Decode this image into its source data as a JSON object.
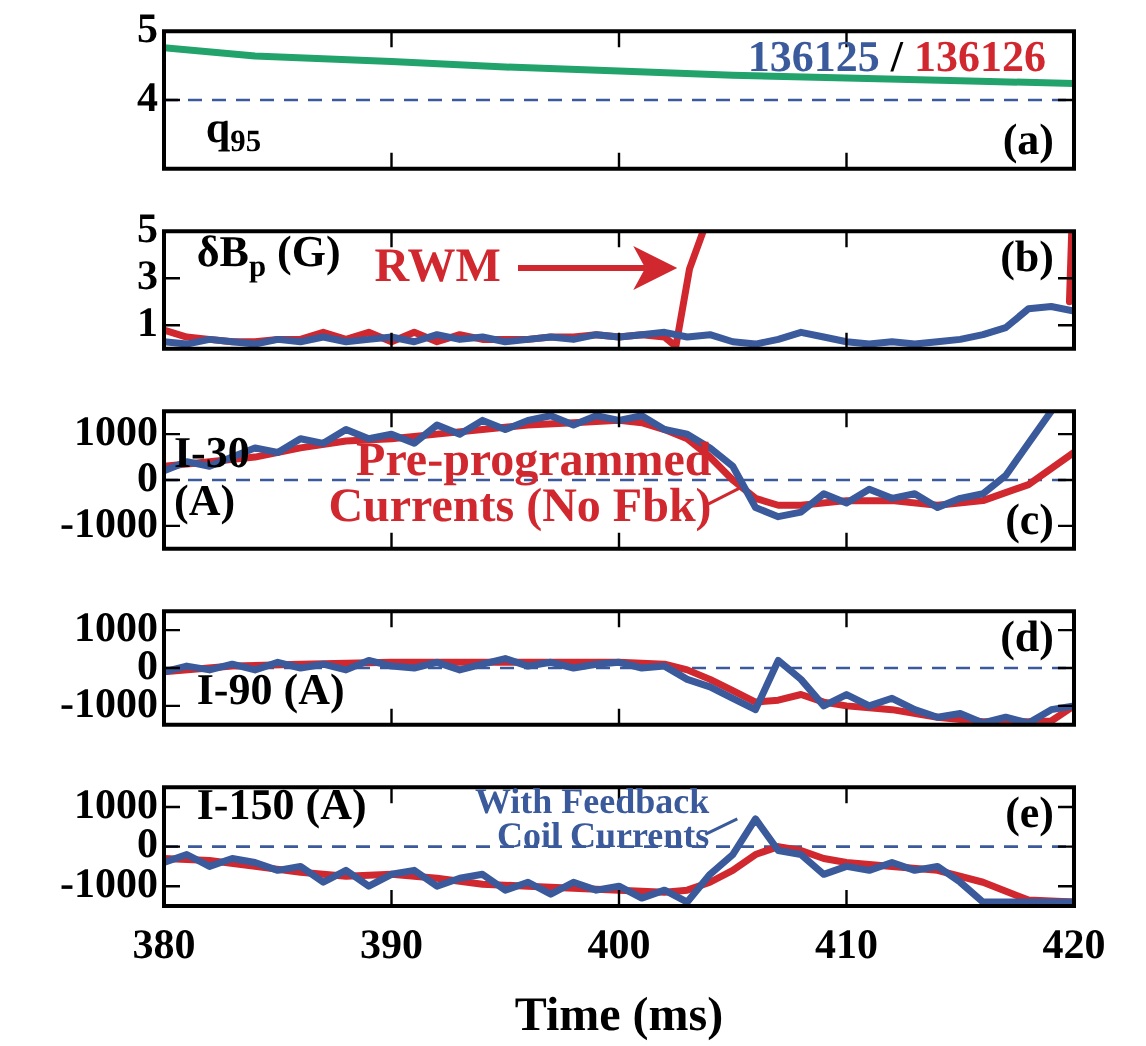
{
  "chart_data": [
    {
      "type": "line",
      "ylabel": "q$_{95}$",
      "xlim": [
        380,
        420
      ],
      "xticks": [
        380,
        390,
        400,
        410,
        420
      ],
      "ylim": [
        3,
        5
      ],
      "yticks": [
        4,
        5
      ],
      "tick_labels": "y",
      "legend": false,
      "annotations": [
        "(a)",
        "136125 / 136126"
      ],
      "ref_lines": [
        {
          "axis": "y",
          "value": 4,
          "color": "#3a5a9c",
          "line_style": "dashed"
        }
      ],
      "series": [
        {
          "color": "#22a36b",
          "x": [
            380,
            384,
            390,
            395,
            400,
            405,
            410,
            415,
            420
          ],
          "values": [
            4.76,
            4.64,
            4.56,
            4.48,
            4.42,
            4.36,
            4.32,
            4.28,
            4.24
          ]
        }
      ]
    },
    {
      "type": "line",
      "ylabel": "δB$_{p}$ (G)",
      "xlim": [
        380,
        420
      ],
      "xticks": [
        380,
        390,
        400,
        410,
        420
      ],
      "ylim": [
        0,
        5
      ],
      "yticks": [
        1,
        3,
        5
      ],
      "tick_labels": "y",
      "legend": false,
      "annotations": [
        "(b)",
        "RWM"
      ],
      "series": [
        {
          "color": "#3a5a9c",
          "x": [
            380,
            381,
            382,
            383,
            384,
            385,
            386,
            387,
            388,
            389,
            390,
            391,
            392,
            393,
            394,
            395,
            396,
            397,
            398,
            399,
            400,
            401,
            402,
            403,
            404,
            405,
            406,
            407,
            408,
            409,
            410,
            411,
            412,
            413,
            414,
            415,
            416,
            417,
            418,
            419,
            420
          ],
          "values": [
            0.3,
            0.2,
            0.4,
            0.3,
            0.2,
            0.4,
            0.3,
            0.5,
            0.3,
            0.4,
            0.5,
            0.3,
            0.6,
            0.4,
            0.5,
            0.3,
            0.4,
            0.5,
            0.4,
            0.6,
            0.5,
            0.6,
            0.7,
            0.5,
            0.6,
            0.3,
            0.2,
            0.4,
            0.7,
            0.5,
            0.3,
            0.2,
            0.3,
            0.2,
            0.3,
            0.4,
            0.6,
            0.9,
            1.7,
            1.8,
            1.6
          ]
        },
        {
          "color": "#d0282e",
          "x": [
            380,
            381,
            382,
            383,
            384,
            385,
            386,
            387,
            388,
            389,
            390,
            391,
            392,
            393,
            394,
            395,
            396,
            397,
            398,
            399,
            400,
            401,
            402,
            402.5,
            403.1,
            403.7,
            419.7,
            419.8,
            419.9
          ],
          "values": [
            0.8,
            0.5,
            0.4,
            0.3,
            0.3,
            0.4,
            0.4,
            0.7,
            0.4,
            0.7,
            0.3,
            0.7,
            0.3,
            0.6,
            0.4,
            0.4,
            0.4,
            0.5,
            0.5,
            0.6,
            0.5,
            0.6,
            0.5,
            0.1,
            3.4,
            5,
            null,
            2,
            5
          ]
        }
      ]
    },
    {
      "type": "line",
      "ylabel": "I-30 (A)",
      "xlim": [
        380,
        420
      ],
      "xticks": [
        380,
        390,
        400,
        410,
        420
      ],
      "ylim": [
        -1500,
        1500
      ],
      "yticks": [
        -1000,
        0,
        1000
      ],
      "tick_labels": "y",
      "legend": false,
      "annotations": [
        "(c)",
        {
          "text": "Pre-programmed\nCurrents (No Fbk)",
          "x": 405.3,
          "y": -350
        }
      ],
      "ref_lines": [
        {
          "axis": "y",
          "value": 0,
          "color": "#3a5a9c",
          "line_style": "dashed"
        }
      ],
      "series": [
        {
          "color": "#3a5a9c",
          "x": [
            380,
            381,
            382,
            383,
            384,
            385,
            386,
            387,
            388,
            389,
            390,
            391,
            392,
            393,
            394,
            395,
            396,
            397,
            398,
            399,
            400,
            401,
            402,
            403,
            404,
            405,
            406,
            407,
            408,
            409,
            410,
            411,
            412,
            413,
            414,
            415,
            416,
            417,
            418,
            419
          ],
          "values": [
            200,
            400,
            300,
            500,
            700,
            600,
            900,
            800,
            1100,
            900,
            1000,
            800,
            1200,
            1000,
            1300,
            1100,
            1300,
            1400,
            1200,
            1400,
            1300,
            1400,
            1100,
            1000,
            700,
            300,
            -600,
            -800,
            -700,
            -300,
            -500,
            -200,
            -400,
            -300,
            -600,
            -400,
            -300,
            100,
            800,
            1500
          ]
        },
        {
          "color": "#d0282e",
          "x": [
            380,
            382,
            384,
            386,
            388,
            390,
            392,
            394,
            396,
            398,
            400,
            401,
            402,
            403,
            404,
            405,
            406,
            407,
            408,
            410,
            412,
            414,
            416,
            418,
            420
          ],
          "values": [
            300,
            400,
            500,
            700,
            850,
            900,
            1000,
            1100,
            1200,
            1250,
            1300,
            1250,
            1100,
            900,
            500,
            0,
            -400,
            -550,
            -550,
            -450,
            -450,
            -550,
            -450,
            -100,
            600
          ]
        }
      ]
    },
    {
      "type": "line",
      "ylabel": "I-90 (A)",
      "xlim": [
        380,
        420
      ],
      "xticks": [
        380,
        390,
        400,
        410,
        420
      ],
      "ylim": [
        -1500,
        1500
      ],
      "yticks": [
        -1000,
        0,
        1000
      ],
      "tick_labels": "y",
      "legend": false,
      "annotations": [
        "(d)"
      ],
      "ref_lines": [
        {
          "axis": "y",
          "value": 0,
          "color": "#3a5a9c",
          "line_style": "dashed"
        }
      ],
      "series": [
        {
          "color": "#3a5a9c",
          "x": [
            380,
            381,
            382,
            383,
            384,
            385,
            386,
            387,
            388,
            389,
            390,
            391,
            392,
            393,
            394,
            395,
            396,
            397,
            398,
            399,
            400,
            401,
            402,
            403,
            404,
            405,
            406,
            407,
            408,
            409,
            410,
            411,
            412,
            413,
            414,
            415,
            416,
            417,
            418,
            419,
            420
          ],
          "values": [
            -100,
            50,
            -50,
            100,
            -50,
            150,
            0,
            100,
            -50,
            200,
            50,
            0,
            150,
            -50,
            100,
            250,
            50,
            150,
            0,
            100,
            150,
            0,
            50,
            -300,
            -500,
            -800,
            -1100,
            200,
            -300,
            -1000,
            -700,
            -1000,
            -800,
            -1100,
            -1300,
            -1200,
            -1450,
            -1300,
            -1450,
            -1100,
            -1000
          ]
        },
        {
          "color": "#d0282e",
          "x": [
            380,
            383,
            386,
            390,
            395,
            400,
            402,
            403,
            404,
            405,
            406,
            407,
            408,
            409,
            410,
            412,
            414,
            416,
            418,
            419,
            420
          ],
          "values": [
            -100,
            50,
            100,
            150,
            150,
            150,
            100,
            -50,
            -300,
            -600,
            -900,
            -850,
            -700,
            -900,
            -1000,
            -1100,
            -1300,
            -1420,
            -1420,
            -1400,
            -1000
          ]
        }
      ]
    },
    {
      "type": "line",
      "ylabel": "I-150 (A)",
      "xlabel": "Time (ms)",
      "xlim": [
        380,
        420
      ],
      "xticks": [
        380,
        390,
        400,
        410,
        420
      ],
      "ylim": [
        -1500,
        1500
      ],
      "yticks": [
        -1000,
        0,
        1000
      ],
      "legend": false,
      "annotations": [
        "(e)",
        {
          "text": "With Feedback\nCoil Currents",
          "x": 405.2,
          "y": 500
        }
      ],
      "ref_lines": [
        {
          "axis": "y",
          "value": 0,
          "color": "#3a5a9c",
          "line_style": "dashed"
        }
      ],
      "series": [
        {
          "color": "#3a5a9c",
          "x": [
            380,
            381,
            382,
            383,
            384,
            385,
            386,
            387,
            388,
            389,
            390,
            391,
            392,
            393,
            394,
            395,
            396,
            397,
            398,
            399,
            400,
            401,
            402,
            403,
            404,
            405,
            406,
            407,
            408,
            409,
            410,
            411,
            412,
            413,
            414,
            415,
            416,
            417,
            418,
            419,
            420
          ],
          "values": [
            -400,
            -200,
            -500,
            -300,
            -400,
            -600,
            -500,
            -900,
            -600,
            -1000,
            -700,
            -600,
            -1000,
            -800,
            -700,
            -1100,
            -900,
            -1200,
            -900,
            -1100,
            -1000,
            -1300,
            -1100,
            -1400,
            -700,
            -200,
            700,
            -100,
            -200,
            -700,
            -500,
            -600,
            -400,
            -600,
            -500,
            -900,
            -1400,
            -1400,
            -1400,
            -1400,
            -1400
          ]
        },
        {
          "color": "#d0282e",
          "x": [
            380,
            382,
            384,
            386,
            388,
            390,
            392,
            394,
            396,
            398,
            400,
            402,
            403,
            404,
            405,
            406,
            407,
            408,
            409,
            410,
            412,
            414,
            416,
            418,
            420
          ],
          "values": [
            -300,
            -350,
            -500,
            -650,
            -750,
            -700,
            -800,
            -950,
            -1000,
            -1050,
            -1100,
            -1150,
            -1100,
            -900,
            -600,
            -200,
            0,
            -100,
            -300,
            -400,
            -500,
            -600,
            -900,
            -1350,
            -1400
          ]
        }
      ]
    }
  ]
}
